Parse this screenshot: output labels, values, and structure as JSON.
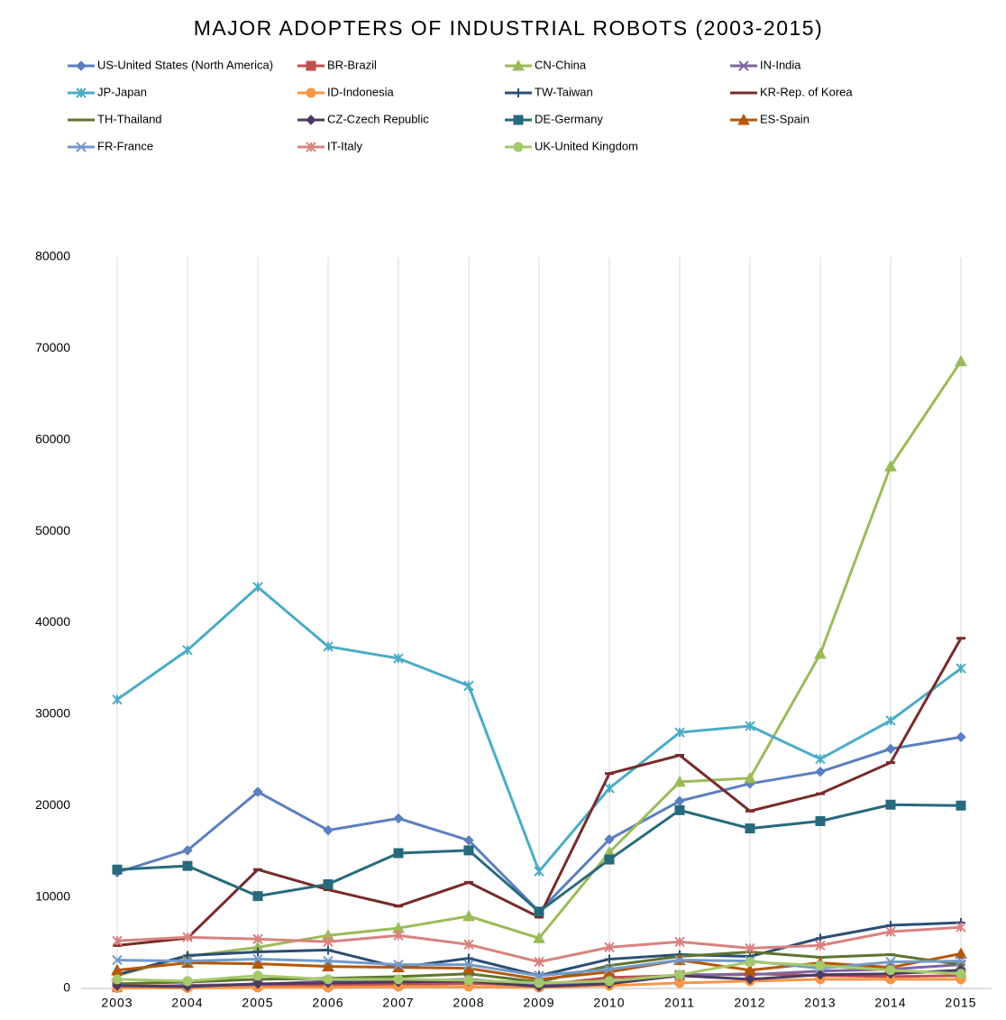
{
  "chart_data": {
    "type": "line",
    "title": "MAJOR ADOPTERS OF INDUSTRIAL ROBOTS (2003-2015)",
    "categories": [
      "2003",
      "2004",
      "2005",
      "2006",
      "2007",
      "2008",
      "2009",
      "2010",
      "2011",
      "2012",
      "2013",
      "2014",
      "2015"
    ],
    "ylim": [
      0,
      80000
    ],
    "yticks": [
      0,
      10000,
      20000,
      30000,
      40000,
      50000,
      60000,
      70000,
      80000
    ],
    "grid": true,
    "legend": "top",
    "series": [
      {
        "name": "US-United States (North America)",
        "color": "#5b7fc0",
        "marker": "diamond",
        "values": [
          12700,
          15100,
          21500,
          17300,
          18600,
          16200,
          8400,
          16300,
          20500,
          22400,
          23700,
          26200,
          27500
        ]
      },
      {
        "name": "BR-Brazil",
        "color": "#c0504d",
        "marker": "square",
        "values": [
          250,
          300,
          350,
          400,
          450,
          550,
          350,
          1200,
          1400,
          1600,
          1400,
          1300,
          1400
        ]
      },
      {
        "name": "CN-China",
        "color": "#9bbb59",
        "marker": "triangle",
        "values": [
          1400,
          3500,
          4500,
          5800,
          6600,
          7900,
          5500,
          14900,
          22600,
          23000,
          36600,
          57100,
          68600
        ]
      },
      {
        "name": "IN-India",
        "color": "#8064a2",
        "marker": "x",
        "values": [
          100,
          350,
          450,
          800,
          800,
          1000,
          400,
          800,
          1500,
          1500,
          1900,
          2100,
          2600
        ]
      },
      {
        "name": "JP-Japan",
        "color": "#4bacc6",
        "marker": "star",
        "values": [
          31600,
          37000,
          43900,
          37400,
          36100,
          33100,
          12800,
          21900,
          28000,
          28700,
          25100,
          29300,
          35000
        ]
      },
      {
        "name": "ID-Indonesia",
        "color": "#f79646",
        "marker": "circle",
        "values": [
          50,
          50,
          100,
          100,
          200,
          200,
          100,
          300,
          600,
          800,
          1000,
          1000,
          1000
        ]
      },
      {
        "name": "TW-Taiwan",
        "color": "#2c4d75",
        "marker": "plus",
        "values": [
          1500,
          3600,
          4000,
          4200,
          2300,
          3300,
          1400,
          3200,
          3700,
          3500,
          5500,
          6900,
          7200
        ]
      },
      {
        "name": "KR-Rep. of Korea",
        "color": "#772c2a",
        "marker": "dash",
        "values": [
          4700,
          5500,
          13000,
          10800,
          9000,
          11600,
          7800,
          23500,
          25500,
          19400,
          21300,
          24700,
          38300
        ]
      },
      {
        "name": "TH-Thailand",
        "color": "#5f7530",
        "marker": "dash",
        "values": [
          500,
          700,
          1000,
          1100,
          1300,
          1600,
          700,
          2500,
          3500,
          4000,
          3400,
          3700,
          2600
        ]
      },
      {
        "name": "CZ-Czech Republic",
        "color": "#4d3b62",
        "marker": "diamond",
        "values": [
          300,
          200,
          500,
          600,
          700,
          800,
          200,
          500,
          1400,
          1000,
          1500,
          1600,
          2000
        ]
      },
      {
        "name": "DE-Germany",
        "color": "#276a7c",
        "marker": "square",
        "values": [
          13000,
          13400,
          10100,
          11400,
          14800,
          15100,
          8400,
          14100,
          19500,
          17500,
          18300,
          20100,
          20000
        ]
      },
      {
        "name": "ES-Spain",
        "color": "#b65708",
        "marker": "triangle",
        "values": [
          2000,
          2800,
          2700,
          2400,
          2300,
          2200,
          1000,
          1800,
          3100,
          2000,
          2800,
          2300,
          3800
        ]
      },
      {
        "name": "FR-France",
        "color": "#729aca",
        "marker": "x",
        "values": [
          3100,
          3000,
          3200,
          3000,
          2600,
          2600,
          1400,
          2100,
          3100,
          3000,
          2200,
          2900,
          3000
        ]
      },
      {
        "name": "IT-Italy",
        "color": "#d9827f",
        "marker": "star",
        "values": [
          5200,
          5600,
          5400,
          5100,
          5800,
          4800,
          2900,
          4500,
          5100,
          4400,
          4700,
          6200,
          6700
        ]
      },
      {
        "name": "UK-United Kingdom",
        "color": "#a5c96a",
        "marker": "circle",
        "values": [
          1000,
          800,
          1400,
          1000,
          1000,
          900,
          600,
          800,
          1500,
          2900,
          2500,
          2000,
          1600
        ]
      }
    ]
  }
}
